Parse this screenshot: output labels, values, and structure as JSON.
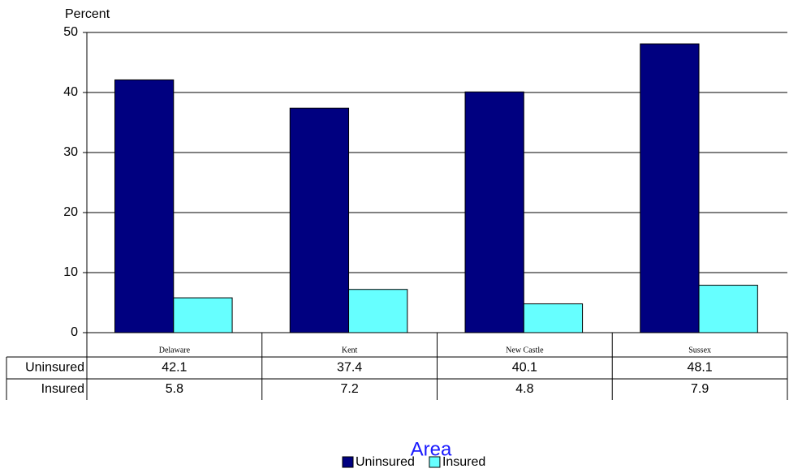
{
  "chart_data": {
    "type": "bar",
    "y_label": "Percent",
    "x_label": "Area",
    "categories": [
      "Delaware",
      "Kent",
      "New Castle",
      "Sussex"
    ],
    "series": [
      {
        "name": "Uninsured",
        "color": "#000080",
        "values": [
          42.1,
          37.4,
          40.1,
          48.1
        ]
      },
      {
        "name": "Insured",
        "color": "#66ffff",
        "values": [
          5.8,
          7.2,
          4.8,
          7.9
        ]
      }
    ],
    "ylim": [
      0,
      50
    ],
    "yticks": [
      0,
      10,
      20,
      30,
      40,
      50
    ],
    "grid": true,
    "data_table": true,
    "legend": "bottom"
  }
}
